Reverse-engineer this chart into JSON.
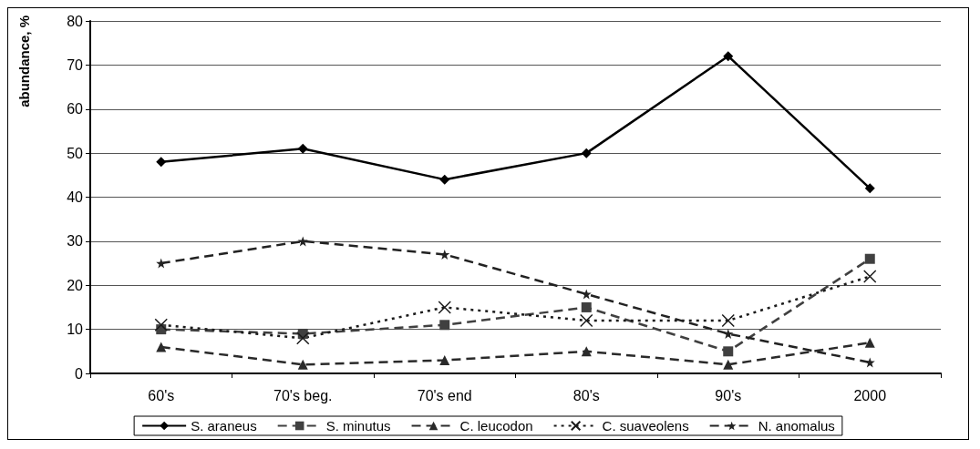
{
  "chart_data": {
    "type": "line",
    "ylabel": "abundance, %",
    "categories": [
      "60's",
      "70's beg.",
      "70's end",
      "80's",
      "90's",
      "2000"
    ],
    "series": [
      {
        "name": "S. araneus",
        "color": "#000000",
        "marker": "diamond",
        "line_style": "solid",
        "values": [
          48,
          51,
          44,
          50,
          72,
          42
        ]
      },
      {
        "name": "S. minutus",
        "color": "#404040",
        "marker": "square",
        "line_style": "dashed",
        "values": [
          10,
          9,
          11,
          15,
          5,
          26
        ]
      },
      {
        "name": "C. leucodon",
        "color": "#2a2a2a",
        "marker": "triangle",
        "line_style": "dashed",
        "values": [
          6,
          2,
          3,
          5,
          2,
          7
        ]
      },
      {
        "name": "C. suaveolens",
        "color": "#1a1a1a",
        "marker": "cross",
        "line_style": "dotted",
        "values": [
          11,
          8,
          15,
          12,
          12,
          22
        ]
      },
      {
        "name": "N. anomalus",
        "color": "#222222",
        "marker": "star",
        "line_style": "dashed",
        "values": [
          25,
          30,
          27,
          18,
          9,
          2.5
        ]
      }
    ],
    "ylim": [
      0,
      80
    ],
    "yticks": [
      0,
      10,
      20,
      30,
      40,
      50,
      60,
      70,
      80
    ],
    "grid": "y",
    "legend": "bottom"
  }
}
